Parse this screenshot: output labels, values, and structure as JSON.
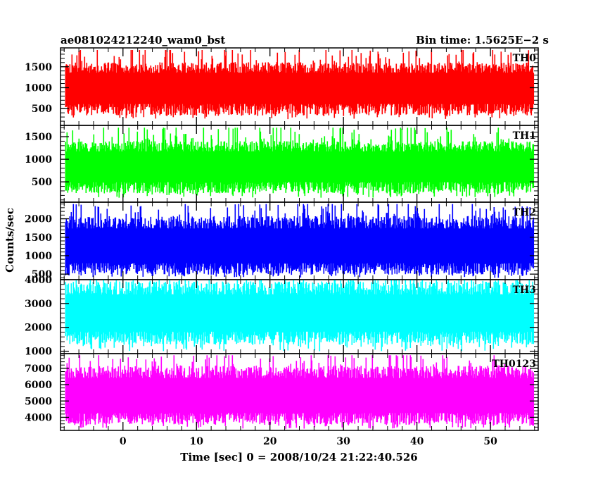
{
  "chart_data": {
    "type": "line",
    "title": "ae081024212240_wam0_bst",
    "bin_time_label": "Bin time: 1.5625E−2 s",
    "xlabel": "Time [sec] 0 = 2008/10/24 21:22:40.526",
    "ylabel": "Counts/sec",
    "xlim": [
      -8.5,
      56.5
    ],
    "data_xrange": [
      -7.8,
      55.9
    ],
    "x_ticks": [
      0,
      10,
      20,
      30,
      40,
      50
    ],
    "x_tick_labels": [
      "0",
      "10",
      "20",
      "30",
      "40",
      "50"
    ],
    "panels": [
      {
        "name": "TH0",
        "color": "#ff0000",
        "ylim": [
          100,
          1950
        ],
        "y_ticks": [
          500,
          1000,
          1500
        ],
        "y_tick_labels": [
          "500",
          "1000",
          "1500"
        ],
        "mean": 1000,
        "typical_range": [
          400,
          1550
        ],
        "extreme_range": [
          250,
          1900
        ]
      },
      {
        "name": "TH1",
        "color": "#00ff00",
        "ylim": [
          50,
          1750
        ],
        "y_ticks": [
          500,
          1000,
          1500
        ],
        "y_tick_labels": [
          "500",
          "1000",
          "1500"
        ],
        "mean": 850,
        "typical_range": [
          300,
          1350
        ],
        "extreme_range": [
          150,
          1700
        ]
      },
      {
        "name": "TH2",
        "color": "#0000ff",
        "ylim": [
          350,
          2450
        ],
        "y_ticks": [
          500,
          1000,
          1500,
          2000
        ],
        "y_tick_labels": [
          "500",
          "1000",
          "1500",
          "2000"
        ],
        "mean": 1250,
        "typical_range": [
          550,
          2000
        ],
        "extreme_range": [
          400,
          2400
        ]
      },
      {
        "name": "TH3",
        "color": "#00ffff",
        "ylim": [
          900,
          4000
        ],
        "y_ticks": [
          1000,
          2000,
          3000,
          4000
        ],
        "y_tick_labels": [
          "1000",
          "2000",
          "3000",
          "4000"
        ],
        "mean": 2600,
        "typical_range": [
          1400,
          3800
        ],
        "extreme_range": [
          1000,
          4000
        ]
      },
      {
        "name": "TH0123",
        "color": "#ff00ff",
        "ylim": [
          3200,
          7900
        ],
        "y_ticks": [
          4000,
          5000,
          6000,
          7000
        ],
        "y_tick_labels": [
          "4000",
          "5000",
          "6000",
          "7000"
        ],
        "mean": 5300,
        "typical_range": [
          3700,
          7000
        ],
        "extreme_range": [
          3300,
          7800
        ]
      }
    ]
  }
}
